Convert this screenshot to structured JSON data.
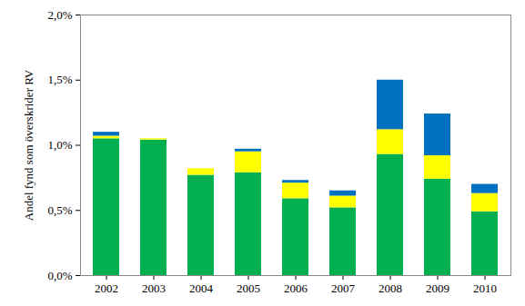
{
  "chart_data": {
    "type": "bar",
    "stacked": true,
    "grid": false,
    "y_label": "Andel fynd som överskrider RV",
    "categories": [
      "2002",
      "2003",
      "2004",
      "2005",
      "2006",
      "2007",
      "2008",
      "2009",
      "2010"
    ],
    "series": [
      {
        "color": "#00b050",
        "values": [
          1.05,
          1.04,
          0.77,
          0.79,
          0.59,
          0.52,
          0.93,
          0.74,
          0.49
        ]
      },
      {
        "color": "#ffff00",
        "values": [
          0.02,
          0.01,
          0.05,
          0.16,
          0.12,
          0.09,
          0.19,
          0.18,
          0.14
        ]
      },
      {
        "color": "#0070c0",
        "values": [
          0.03,
          0,
          0,
          0.02,
          0.02,
          0.04,
          0.38,
          0.32,
          0.07
        ]
      }
    ],
    "ylim": [
      0,
      2.0
    ],
    "yticks": [
      {
        "value": 0,
        "label": "0,0%"
      },
      {
        "value": 0.5,
        "label": "0,5%"
      },
      {
        "value": 1.0,
        "label": "1,0%"
      },
      {
        "value": 1.5,
        "label": "1,5%"
      },
      {
        "value": 2.0,
        "label": "2,0%"
      }
    ]
  }
}
